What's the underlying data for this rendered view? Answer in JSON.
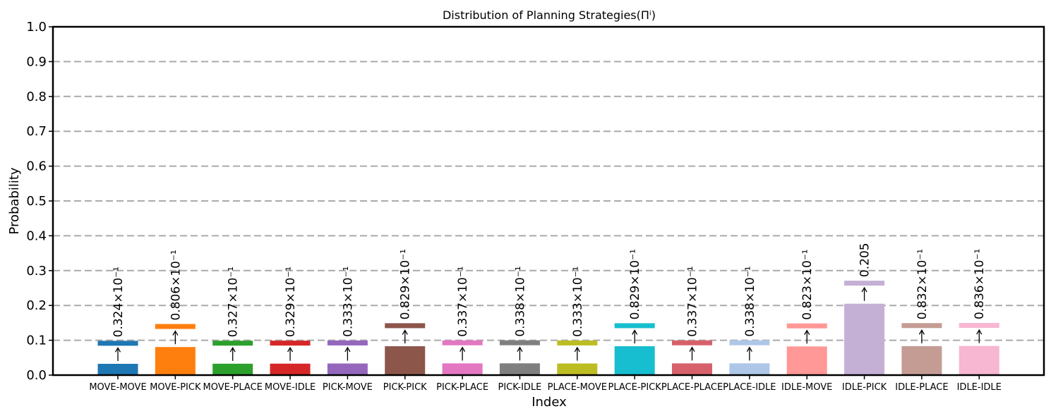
{
  "chart_data": {
    "type": "bar",
    "title": "Distribution of Planning Strategies(Πⁱ)",
    "xlabel": "Index",
    "ylabel": "Probability",
    "ylim": [
      0,
      1.0
    ],
    "yticks": [
      "0.0",
      "0.1",
      "0.2",
      "0.3",
      "0.4",
      "0.5",
      "0.6",
      "0.7",
      "0.8",
      "0.9",
      "1.0"
    ],
    "grid": "horizontal dashed",
    "categories": [
      "MOVE-MOVE",
      "MOVE-PICK",
      "MOVE-PLACE",
      "MOVE-IDLE",
      "PICK-MOVE",
      "PICK-PICK",
      "PICK-PLACE",
      "PICK-IDLE",
      "PLACE-MOVE",
      "PLACE-PICK",
      "PLACE-PLACE",
      "PLACE-IDLE",
      "IDLE-MOVE",
      "IDLE-PICK",
      "IDLE-PLACE",
      "IDLE-IDLE"
    ],
    "values": [
      0.0324,
      0.0806,
      0.0327,
      0.0329,
      0.0333,
      0.0829,
      0.0337,
      0.0338,
      0.0333,
      0.0829,
      0.0337,
      0.0338,
      0.0823,
      0.205,
      0.0832,
      0.0836
    ],
    "value_labels": [
      "0.324×10⁻¹",
      "0.806×10⁻¹",
      "0.327×10⁻¹",
      "0.329×10⁻¹",
      "0.333×10⁻¹",
      "0.829×10⁻¹",
      "0.337×10⁻¹",
      "0.338×10⁻¹",
      "0.333×10⁻¹",
      "0.829×10⁻¹",
      "0.337×10⁻¹",
      "0.338×10⁻¹",
      "0.823×10⁻¹",
      "0.205",
      "0.832×10⁻¹",
      "0.836×10⁻¹"
    ],
    "colors": [
      "#1f77b4",
      "#ff7f0e",
      "#2ca02c",
      "#d62728",
      "#9467bd",
      "#8c564b",
      "#e377c2",
      "#7f7f7f",
      "#bcbd22",
      "#17becf",
      "#d6616b",
      "#aec7e8",
      "#ff9896",
      "#c5b0d5",
      "#c49c94",
      "#f7b6d2"
    ],
    "annotation_offset": 0.06
  }
}
